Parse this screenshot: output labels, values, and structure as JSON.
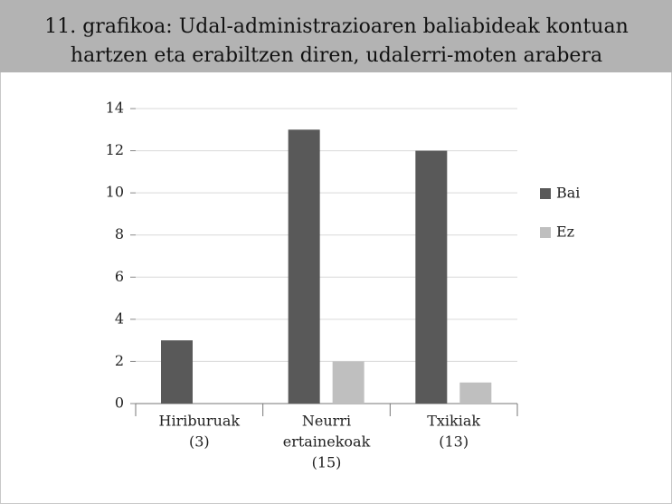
{
  "chart_data": {
    "type": "bar",
    "title": [
      "11. grafikoa: Udal-administrazioaren baliabideak kontuan",
      "hartzen eta erabiltzen diren, udalerri-moten arabera"
    ],
    "categories": [
      [
        "Hiriburuak",
        "(3)"
      ],
      [
        "Neurri",
        "ertainekoak",
        "(15)"
      ],
      [
        "Txikiak",
        "(13)"
      ]
    ],
    "series": [
      {
        "name": "Bai",
        "color": "#595959",
        "values": [
          3,
          13,
          12
        ]
      },
      {
        "name": "Ez",
        "color": "#bfbfbf",
        "values": [
          0,
          2,
          1
        ]
      }
    ],
    "ylim": [
      0,
      14
    ],
    "yticks": [
      0,
      2,
      4,
      6,
      8,
      10,
      12,
      14
    ],
    "grid": true,
    "legend": "right"
  }
}
